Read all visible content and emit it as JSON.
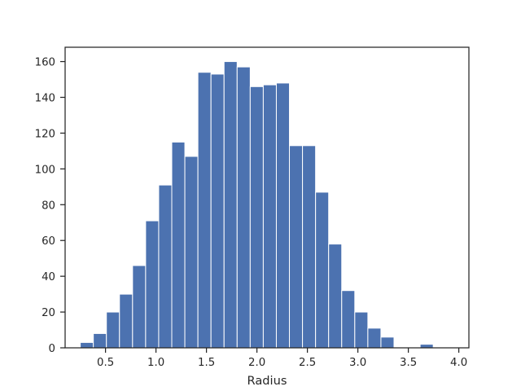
{
  "chart_data": {
    "type": "bar",
    "xlabel": "Radius",
    "ylabel": "",
    "title": "",
    "grid": false,
    "bar_color": "#4c72b0",
    "xlim": [
      0.1,
      4.1
    ],
    "ylim": [
      0,
      168
    ],
    "bin_start": 0.25,
    "bin_width": 0.1295,
    "values": [
      3,
      8,
      20,
      30,
      46,
      71,
      91,
      115,
      107,
      154,
      153,
      160,
      157,
      146,
      147,
      148,
      113,
      113,
      87,
      58,
      32,
      20,
      11,
      6,
      0,
      0,
      2,
      0
    ],
    "xticks": [
      {
        "value": 0.5,
        "label": "0.5"
      },
      {
        "value": 1.0,
        "label": "1.0"
      },
      {
        "value": 1.5,
        "label": "1.5"
      },
      {
        "value": 2.0,
        "label": "2.0"
      },
      {
        "value": 2.5,
        "label": "2.5"
      },
      {
        "value": 3.0,
        "label": "3.0"
      },
      {
        "value": 3.5,
        "label": "3.5"
      },
      {
        "value": 4.0,
        "label": "4.0"
      }
    ],
    "yticks": [
      {
        "value": 0,
        "label": "0"
      },
      {
        "value": 20,
        "label": "20"
      },
      {
        "value": 40,
        "label": "40"
      },
      {
        "value": 60,
        "label": "60"
      },
      {
        "value": 80,
        "label": "80"
      },
      {
        "value": 100,
        "label": "100"
      },
      {
        "value": 120,
        "label": "120"
      },
      {
        "value": 140,
        "label": "140"
      },
      {
        "value": 160,
        "label": "160"
      }
    ]
  }
}
